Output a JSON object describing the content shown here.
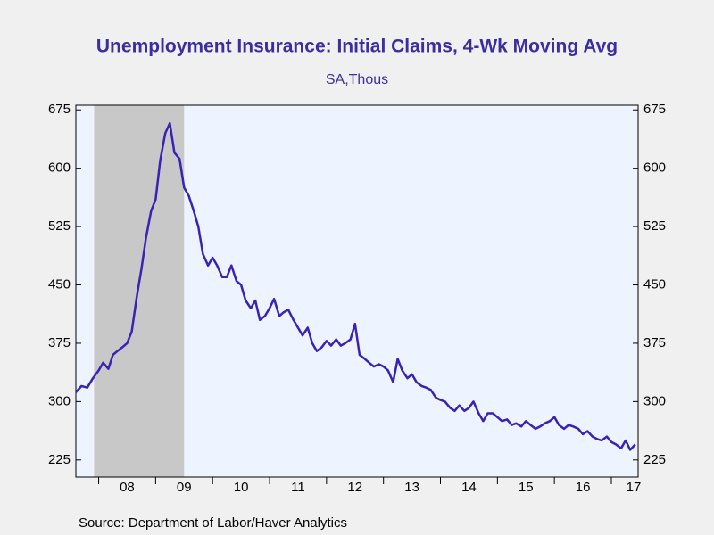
{
  "chart_data": {
    "type": "line",
    "title": "Unemployment Insurance: Initial Claims, 4-Wk Moving Avg",
    "subtitle": "SA,Thous",
    "source": "Source:  Department of Labor/Haver Analytics",
    "recession": [
      2007.92,
      2009.5
    ],
    "xlim": [
      2007.6,
      2017.47
    ],
    "xticks": [
      {
        "value": 2008,
        "label": "08"
      },
      {
        "value": 2009,
        "label": "09"
      },
      {
        "value": 2010,
        "label": "10"
      },
      {
        "value": 2011,
        "label": "11"
      },
      {
        "value": 2012,
        "label": "12"
      },
      {
        "value": 2013,
        "label": "13"
      },
      {
        "value": 2014,
        "label": "14"
      },
      {
        "value": 2015,
        "label": "15"
      },
      {
        "value": 2016,
        "label": "16"
      },
      {
        "value": 2017,
        "label": "17"
      }
    ],
    "ylim": [
      203,
      681
    ],
    "yticks": [
      225,
      300,
      375,
      450,
      525,
      600,
      675
    ],
    "x": [
      2007.6,
      2007.7,
      2007.8,
      2007.9,
      2008.0,
      2008.08,
      2008.17,
      2008.25,
      2008.33,
      2008.42,
      2008.5,
      2008.58,
      2008.67,
      2008.75,
      2008.83,
      2008.92,
      2009.0,
      2009.08,
      2009.17,
      2009.25,
      2009.33,
      2009.42,
      2009.5,
      2009.58,
      2009.67,
      2009.75,
      2009.83,
      2009.92,
      2010.0,
      2010.08,
      2010.17,
      2010.25,
      2010.33,
      2010.42,
      2010.5,
      2010.58,
      2010.67,
      2010.75,
      2010.83,
      2010.92,
      2011.0,
      2011.08,
      2011.17,
      2011.25,
      2011.33,
      2011.42,
      2011.5,
      2011.58,
      2011.67,
      2011.75,
      2011.83,
      2011.92,
      2012.0,
      2012.08,
      2012.17,
      2012.25,
      2012.33,
      2012.42,
      2012.5,
      2012.58,
      2012.67,
      2012.75,
      2012.83,
      2012.92,
      2013.0,
      2013.08,
      2013.17,
      2013.25,
      2013.33,
      2013.42,
      2013.5,
      2013.58,
      2013.67,
      2013.75,
      2013.83,
      2013.92,
      2014.0,
      2014.08,
      2014.17,
      2014.25,
      2014.33,
      2014.42,
      2014.5,
      2014.58,
      2014.67,
      2014.75,
      2014.83,
      2014.92,
      2015.0,
      2015.08,
      2015.17,
      2015.25,
      2015.33,
      2015.42,
      2015.5,
      2015.58,
      2015.67,
      2015.75,
      2015.83,
      2015.92,
      2016.0,
      2016.08,
      2016.17,
      2016.25,
      2016.33,
      2016.42,
      2016.5,
      2016.58,
      2016.67,
      2016.75,
      2016.83,
      2016.92,
      2017.0,
      2017.08,
      2017.17,
      2017.25,
      2017.33,
      2017.42
    ],
    "series": [
      {
        "color": "#3a22b5",
        "values": [
          312,
          320,
          318,
          330,
          340,
          350,
          342,
          360,
          365,
          370,
          375,
          390,
          435,
          470,
          510,
          545,
          560,
          610,
          645,
          658,
          620,
          612,
          575,
          565,
          545,
          525,
          490,
          475,
          485,
          475,
          460,
          460,
          475,
          455,
          450,
          430,
          420,
          430,
          405,
          410,
          420,
          432,
          410,
          415,
          418,
          405,
          395,
          385,
          395,
          375,
          365,
          370,
          378,
          372,
          380,
          372,
          375,
          380,
          400,
          360,
          355,
          350,
          345,
          348,
          345,
          340,
          325,
          355,
          340,
          330,
          335,
          325,
          320,
          318,
          315,
          305,
          302,
          300,
          292,
          288,
          295,
          288,
          292,
          300,
          285,
          275,
          285,
          285,
          280,
          275,
          277,
          270,
          272,
          268,
          275,
          270,
          265,
          268,
          272,
          275,
          280,
          270,
          265,
          270,
          268,
          265,
          258,
          262,
          255,
          252,
          250,
          255,
          248,
          245,
          240,
          250,
          238,
          245
        ]
      }
    ]
  }
}
